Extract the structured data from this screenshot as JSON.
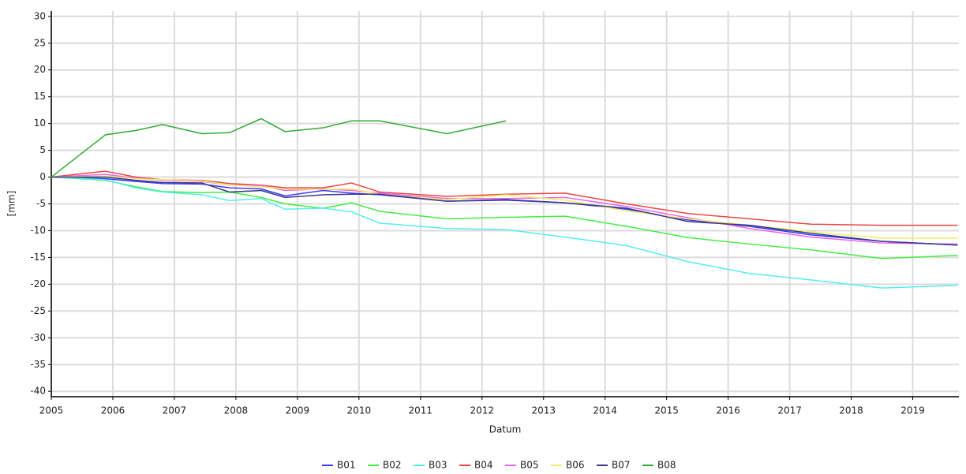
{
  "chart_data": {
    "type": "line",
    "x_label": "Datum",
    "y_label": "[mm]",
    "x": [
      2005,
      2005.88,
      2006.37,
      2006.81,
      2007.45,
      2007.9,
      2008.41,
      2008.8,
      2009.42,
      2009.88,
      2010.34,
      2011.43,
      2012.39,
      2013.35,
      2014.35,
      2015.35,
      2016.35,
      2017.35,
      2018.5,
      2019.73
    ],
    "series": [
      {
        "name": "B01",
        "color": "#3b3bff",
        "values": [
          0,
          -0.3,
          -0.8,
          -1.2,
          -1.3,
          -2.0,
          -2.2,
          -3.5,
          -2.5,
          -3.0,
          -3.3,
          -4.5,
          -4.3,
          -4.8,
          -6.0,
          -8.0,
          -9.2,
          -10.8,
          -12.0,
          -12.7
        ]
      },
      {
        "name": "B02",
        "color": "#44ee44",
        "values": [
          0,
          -0.6,
          -1.8,
          -2.7,
          -2.9,
          -2.8,
          -3.8,
          -5.0,
          -5.8,
          -4.8,
          -6.4,
          -7.8,
          -7.5,
          -7.3,
          -9.2,
          -11.3,
          -12.5,
          -13.6,
          -15.2,
          -14.6
        ]
      },
      {
        "name": "B03",
        "color": "#55eeee",
        "values": [
          0,
          -0.5,
          -2.0,
          -2.8,
          -3.3,
          -4.4,
          -4.0,
          -6.0,
          -5.8,
          -6.5,
          -8.6,
          -9.6,
          -9.8,
          -11.2,
          -12.8,
          -15.8,
          -18.0,
          -19.2,
          -20.7,
          -20.2
        ]
      },
      {
        "name": "B04",
        "color": "#ee4444",
        "values": [
          0,
          1.1,
          0.0,
          -0.5,
          -0.6,
          -1.2,
          -1.5,
          -2.0,
          -2.0,
          -1.1,
          -2.8,
          -3.6,
          -3.2,
          -3.0,
          -5.0,
          -6.8,
          -7.8,
          -8.8,
          -9.0,
          -9.0
        ]
      },
      {
        "name": "B05",
        "color": "#ee66ee",
        "values": [
          0,
          0.5,
          -0.2,
          -0.6,
          -0.8,
          -1.5,
          -1.6,
          -2.5,
          -2.2,
          -2.5,
          -3.0,
          -4.0,
          -4.0,
          -3.8,
          -5.5,
          -7.6,
          -9.6,
          -11.2,
          -12.3,
          -12.5
        ]
      },
      {
        "name": "B06",
        "color": "#eeee66",
        "values": [
          0,
          0.2,
          -0.3,
          -0.5,
          -0.7,
          -1.5,
          -1.8,
          -2.2,
          -2.3,
          -2.2,
          -3.2,
          -4.2,
          -3.3,
          -4.3,
          -6.3,
          -7.8,
          -9.0,
          -10.2,
          -11.4,
          -11.4
        ]
      },
      {
        "name": "B07",
        "color": "#3a3a8a",
        "values": [
          0,
          0.0,
          -0.6,
          -1.0,
          -1.1,
          -2.8,
          -2.5,
          -3.8,
          -3.3,
          -3.2,
          -3.2,
          -4.5,
          -4.2,
          -4.8,
          -5.8,
          -8.3,
          -9.0,
          -10.5,
          -12.0,
          -12.7
        ]
      },
      {
        "name": "B08",
        "color": "#33aa33",
        "values": [
          0,
          7.9,
          8.7,
          9.8,
          8.1,
          8.3,
          10.9,
          8.5,
          9.2,
          10.5,
          10.5,
          8.1,
          10.5,
          null,
          null,
          null,
          null,
          null,
          null,
          null
        ]
      }
    ],
    "xlim": [
      2005,
      2019.75
    ],
    "xticks": [
      2005,
      2006,
      2007,
      2008,
      2009,
      2010,
      2011,
      2012,
      2013,
      2014,
      2015,
      2016,
      2017,
      2018,
      2019
    ],
    "ylim": [
      -41,
      31
    ],
    "yticks": [
      -40,
      -35,
      -30,
      -25,
      -20,
      -15,
      -10,
      -5,
      0,
      5,
      10,
      15,
      20,
      25,
      30
    ],
    "grid": true,
    "legend": "bottom"
  }
}
